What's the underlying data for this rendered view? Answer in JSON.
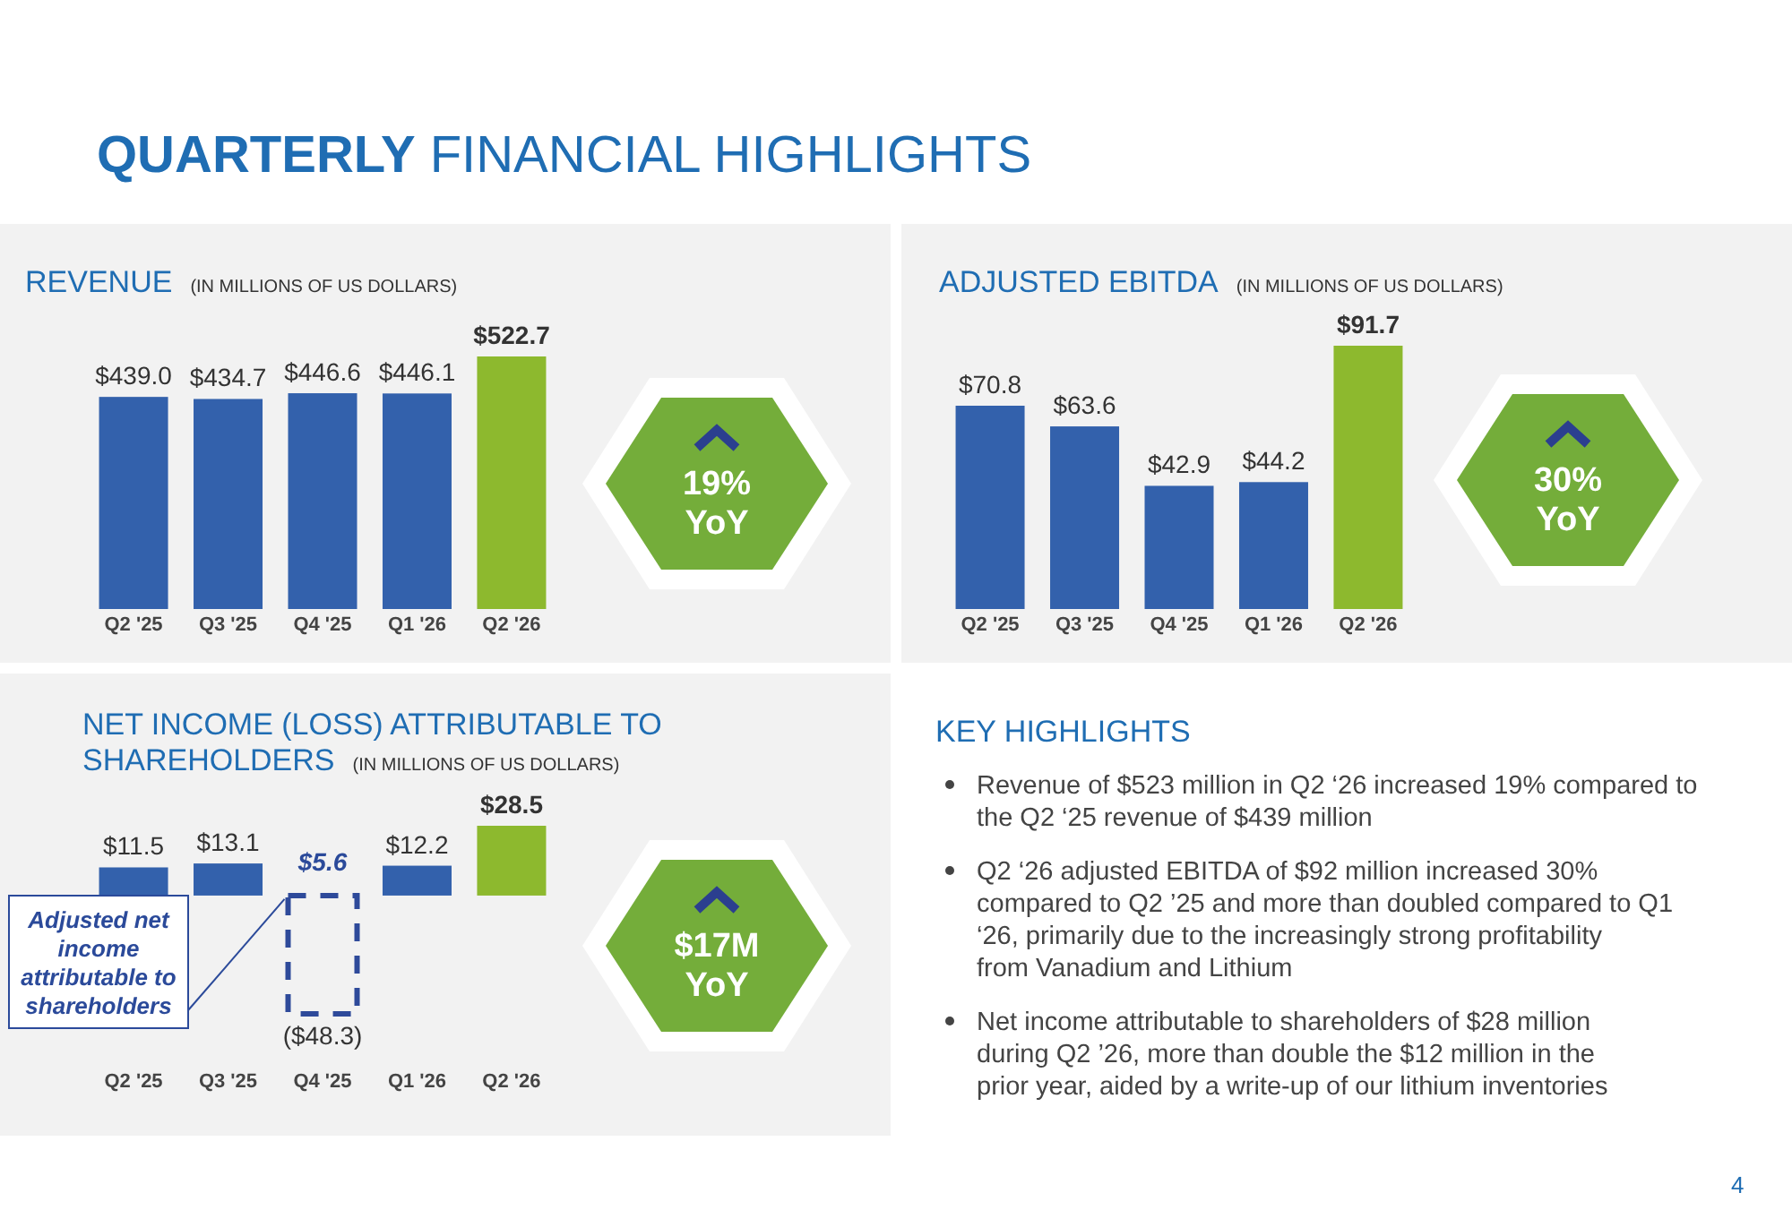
{
  "chart_data": [
    {
      "type": "other",
      "title": "QUARTERLY FINANCIAL HIGHLIGHTS",
      "annotations": [
        "4"
      ]
    },
    {
      "type": "bar",
      "title": "REVENUE",
      "subtitle": "(IN MILLIONS OF US DOLLARS)",
      "categories": [
        "Q2 '25",
        "Q3 '25",
        "Q4 '25",
        "Q1 '26",
        "Q2 '26"
      ],
      "series": [
        {
          "colors": [
            "#3361ac",
            "#3361ac",
            "#3361ac",
            "#3361ac",
            "#8db92e"
          ],
          "values": [
            439.0,
            434.7,
            446.6,
            446.1,
            522.7
          ],
          "value_labels": [
            "$439.0",
            "$434.7",
            "$446.6",
            "$446.1",
            "$522.7"
          ]
        }
      ],
      "annotations": [
        "19%",
        "YoY"
      ]
    },
    {
      "type": "bar",
      "title": "ADJUSTED EBITDA",
      "subtitle": "(IN MILLIONS OF US DOLLARS)",
      "categories": [
        "Q2 '25",
        "Q3 '25",
        "Q4 '25",
        "Q1 '26",
        "Q2 '26"
      ],
      "series": [
        {
          "colors": [
            "#3361ac",
            "#3361ac",
            "#3361ac",
            "#3361ac",
            "#8db92e"
          ],
          "values": [
            70.8,
            63.6,
            42.9,
            44.2,
            91.7
          ],
          "value_labels": [
            "$70.8",
            "$63.6",
            "$42.9",
            "$44.2",
            "$91.7"
          ]
        }
      ],
      "annotations": [
        "30%",
        "YoY"
      ]
    },
    {
      "type": "bar",
      "title": "NET INCOME (LOSS) ATTRIBUTABLE TO SHAREHOLDERS",
      "subtitle": "(IN MILLIONS OF US DOLLARS)",
      "categories": [
        "Q2 '25",
        "Q3 '25",
        "Q4 '25",
        "Q1 '26",
        "Q2 '26"
      ],
      "series": [
        {
          "colors": [
            "#3361ac",
            "#3361ac",
            null,
            "#3361ac",
            "#8db92e"
          ],
          "values": [
            11.5,
            13.1,
            null,
            12.2,
            28.5
          ],
          "value_labels": [
            "$11.5",
            "$13.1",
            "$5.6",
            "$12.2",
            "$28.5"
          ]
        },
        {
          "color": "#2e4a9a",
          "line_style": "dashed",
          "values": [
            null,
            null,
            -48.3,
            null,
            null
          ],
          "value_labels": [
            null,
            null,
            "($48.3)",
            null,
            null
          ]
        }
      ],
      "annotations": [
        "Adjusted net income attributable to shareholders",
        "$17M",
        "YoY"
      ]
    },
    {
      "type": "other",
      "title": "KEY HIGHLIGHTS",
      "annotations": [
        "Revenue of $523 million in Q2 ‘26 increased 19% compared to the Q2 ‘25 revenue of $439 million",
        "Q2 ‘26 adjusted EBITDA of $92 million increased 30% compared to Q2 ’25 and more than doubled compared to Q1 ‘26, primarily due to the increasingly strong profitability from Vanadium and Lithium",
        "Net income attributable to shareholders of $28 million during Q2 ’26, more than double the $12 million in the prior year, aided by a write-up of our lithium inventories"
      ]
    }
  ]
}
